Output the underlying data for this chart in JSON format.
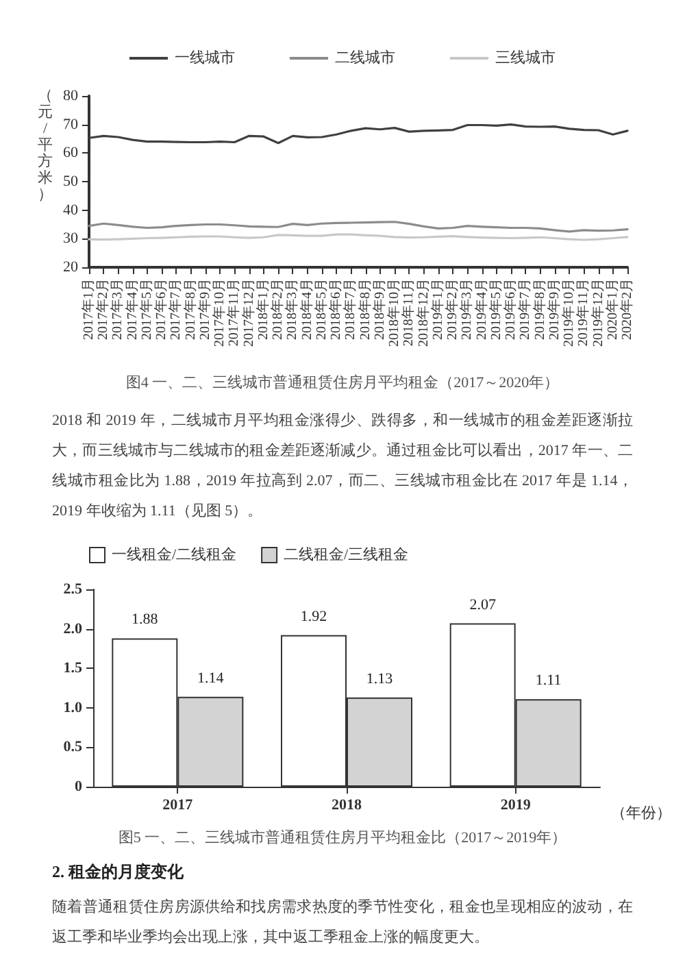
{
  "chart_data": [
    {
      "type": "line",
      "title": "图4 一、二、三线城市普通租赁住房月平均租金（2017～2020年）",
      "ylabel": "（元/平方米）",
      "categories": [
        "2017年1月",
        "2017年2月",
        "2017年3月",
        "2017年4月",
        "2017年5月",
        "2017年6月",
        "2017年7月",
        "2017年8月",
        "2017年9月",
        "2017年10月",
        "2017年11月",
        "2017年12月",
        "2018年1月",
        "2018年2月",
        "2018年3月",
        "2018年4月",
        "2018年5月",
        "2018年6月",
        "2018年7月",
        "2018年8月",
        "2018年9月",
        "2018年10月",
        "2018年11月",
        "2018年12月",
        "2019年1月",
        "2019年2月",
        "2019年3月",
        "2019年4月",
        "2019年5月",
        "2019年6月",
        "2019年7月",
        "2019年8月",
        "2019年9月",
        "2019年10月",
        "2019年11月",
        "2019年12月",
        "2020年1月",
        "2020年2月"
      ],
      "series": [
        {
          "name": "一线城市",
          "color": "#404040",
          "values": [
            65.3,
            66,
            65.6,
            64.6,
            64,
            64,
            63.9,
            63.8,
            63.8,
            64,
            63.8,
            66,
            65.8,
            63.5,
            66,
            65.5,
            65.6,
            66.5,
            67.8,
            68.7,
            68.3,
            68.8,
            67.5,
            67.8,
            67.9,
            68.1,
            69.8,
            69.8,
            69.6,
            70,
            69.3,
            69.2,
            69.3,
            68.5,
            68.1,
            68,
            66.5,
            67.8
          ]
        },
        {
          "name": "二线城市",
          "color": "#8c8c8c",
          "values": [
            34.5,
            35.3,
            34.8,
            34.2,
            33.8,
            34,
            34.5,
            34.8,
            35,
            35,
            34.7,
            34.3,
            34.2,
            34.1,
            35.2,
            34.8,
            35.3,
            35.5,
            35.6,
            35.7,
            35.8,
            35.9,
            35.2,
            34.3,
            33.6,
            33.8,
            34.5,
            34.2,
            34,
            33.8,
            33.8,
            33.6,
            33,
            32.5,
            33,
            32.8,
            32.9,
            33.3
          ]
        },
        {
          "name": "三线城市",
          "color": "#c8c8c8",
          "values": [
            29.8,
            29.7,
            29.8,
            30,
            30.2,
            30.3,
            30.5,
            30.7,
            30.8,
            30.8,
            30.5,
            30.3,
            30.5,
            31.3,
            31.2,
            31,
            31,
            31.5,
            31.5,
            31.2,
            31,
            30.6,
            30.4,
            30.5,
            30.7,
            30.9,
            30.6,
            30.4,
            30.3,
            30.2,
            30.3,
            30.5,
            30.2,
            29.8,
            29.6,
            29.8,
            30.2,
            30.6
          ]
        }
      ],
      "ylim": [
        20,
        80
      ],
      "yticks": [
        20,
        30,
        40,
        50,
        60,
        70,
        80
      ],
      "grid": false,
      "legend": "top",
      "marker": "none",
      "line_style": "solid",
      "annotations": [
        "2018 和 2019 年，二线城市月平均租金涨得少、跌得多，和一线城市的租金差距逐渐拉大，而三线城市与二线城市的租金差距逐渐减少。通过租金比可以看出，2017 年一、二线城市租金比为 1.88，2019 年拉高到 2.07，而二、三线城市租金比在 2017 年是 1.14，2019 年收缩为 1.11（见图 5）。"
      ]
    },
    {
      "type": "bar",
      "title": "图5 一、二、三线城市普通租赁住房月平均租金比（2017～2019年）",
      "xlabel": "（年份）",
      "categories": [
        "2017",
        "2018",
        "2019"
      ],
      "series": [
        {
          "name": "一线租金/二线租金",
          "color": "#ffffff",
          "values": [
            1.88,
            1.92,
            2.07
          ]
        },
        {
          "name": "二线租金/三线租金",
          "color": "#d3d3d3",
          "values": [
            1.14,
            1.13,
            1.11
          ]
        }
      ],
      "ylim": [
        0,
        2.5
      ],
      "yticks": [
        0,
        {
          "value": 0.5,
          "label": "0.5"
        },
        {
          "value": 1,
          "label": "1.0"
        },
        {
          "value": 1.5,
          "label": "1.5"
        },
        {
          "value": 2,
          "label": "2.0"
        },
        {
          "value": 2.5,
          "label": "2.5"
        }
      ],
      "grid": false,
      "legend": "top left",
      "data_labels": true,
      "annotations": [
        "2. 租金的月度变化",
        "随着普通租赁住房房源供给和找房需求热度的季节性变化，租金也呈现相应的波动，在返工季和毕业季均会出现上涨，其中返工季租金上涨的幅度更大。"
      ]
    }
  ]
}
